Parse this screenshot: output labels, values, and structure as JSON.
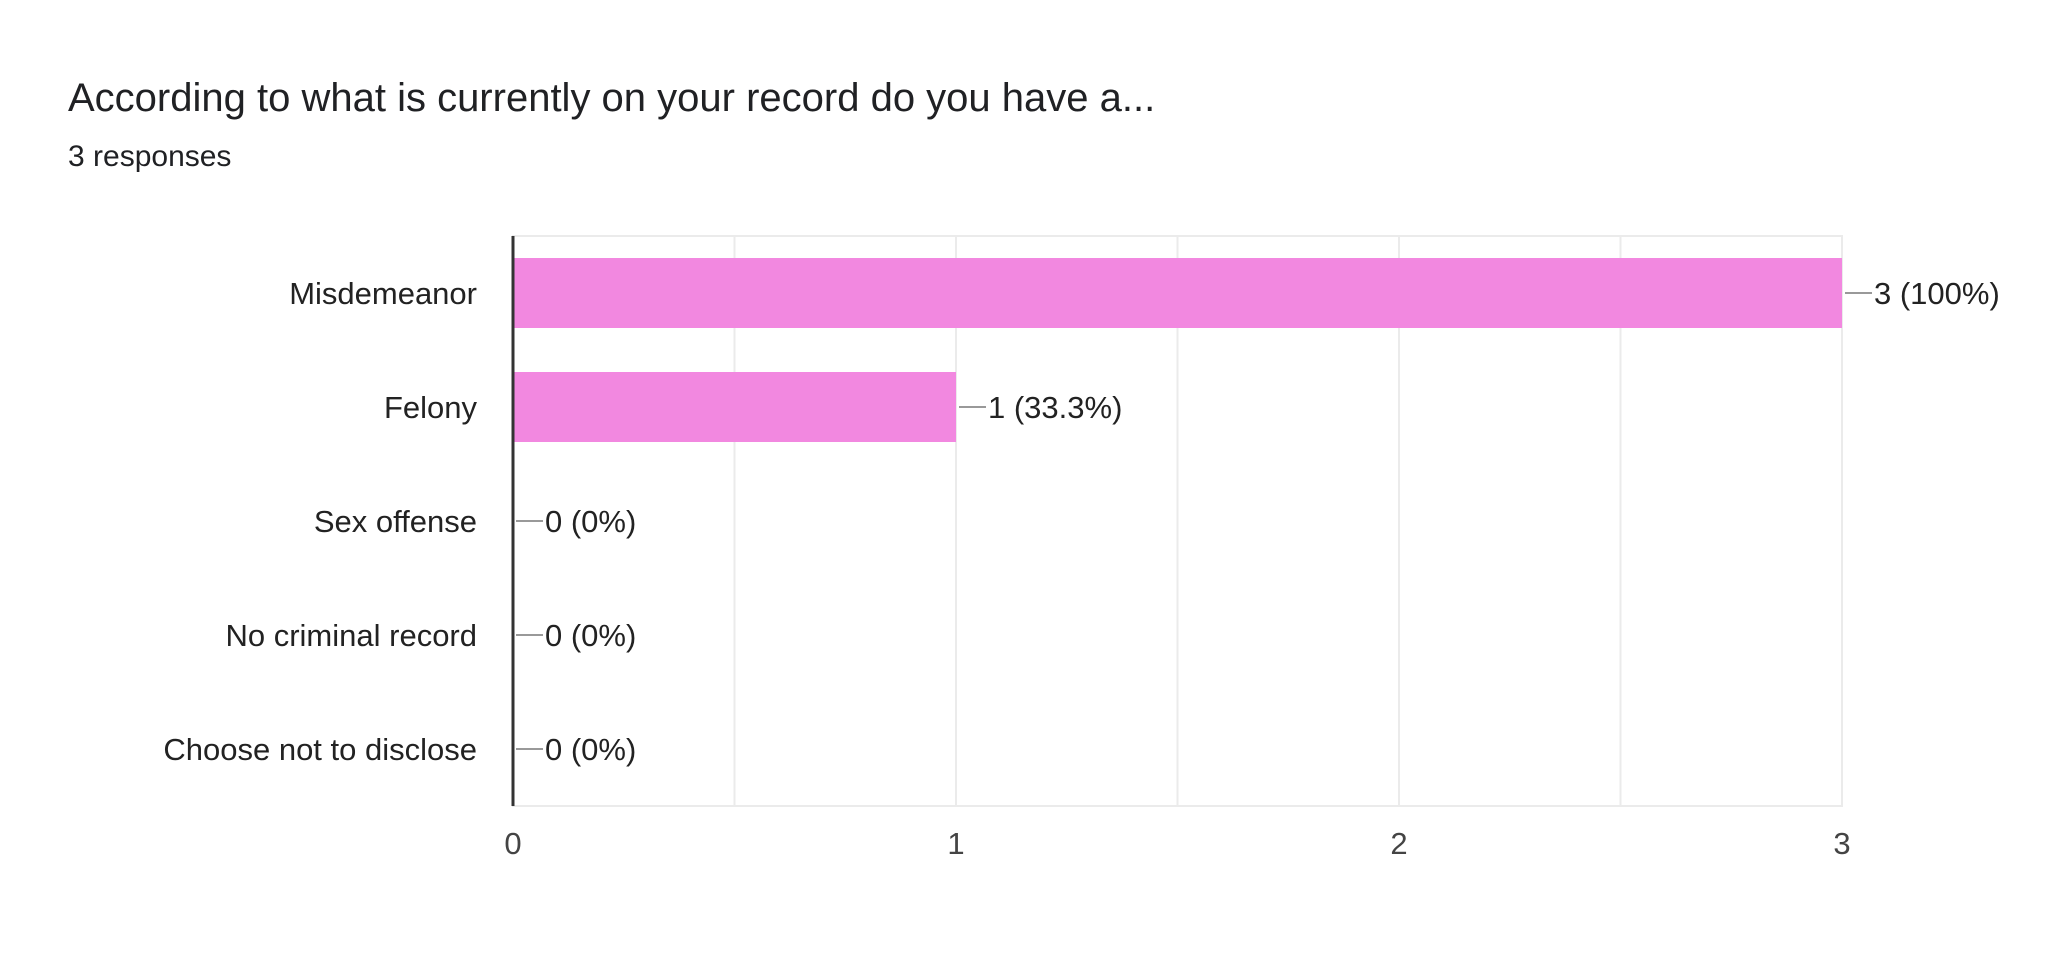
{
  "header": {
    "title": "According to what is currently on your record do you have a...",
    "responses": "3 responses"
  },
  "colors": {
    "bar": "#f288e0",
    "gridline": "#ebebeb",
    "axis": "#333333",
    "leader": "#999999"
  },
  "chart_data": {
    "type": "bar",
    "orientation": "horizontal",
    "title": "According to what is currently on your record do you have a...",
    "categories": [
      "Misdemeanor",
      "Felony",
      "Sex offense",
      "No criminal record",
      "Choose not to disclose"
    ],
    "values": [
      3,
      1,
      0,
      0,
      0
    ],
    "data_labels": [
      "3 (100%)",
      "1 (33.3%)",
      "0 (0%)",
      "0 (0%)",
      "0 (0%)"
    ],
    "x_ticks": [
      "0",
      "1",
      "2",
      "3"
    ],
    "xlim": [
      0,
      3
    ],
    "grid": true,
    "legend": "none"
  }
}
